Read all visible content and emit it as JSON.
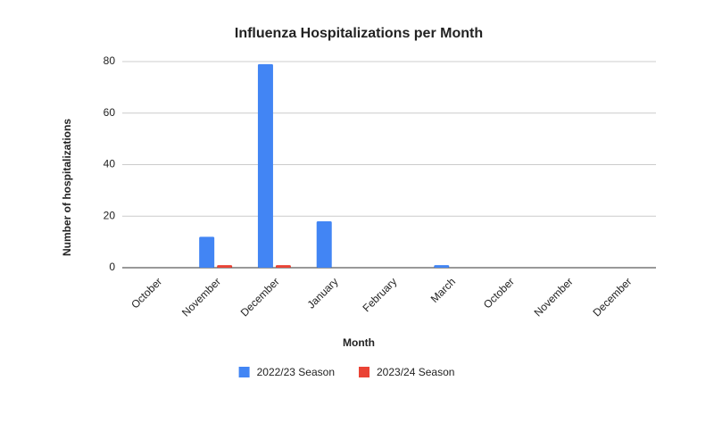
{
  "chart_data": {
    "type": "bar",
    "title": "Influenza Hospitalizations per Month",
    "x_label": "Month",
    "y_label": "Number of hospitalizations",
    "categories": [
      "October",
      "November",
      "December",
      "January",
      "February",
      "March",
      "October",
      "November",
      "December"
    ],
    "series": [
      {
        "name": "2022/23 Season",
        "color": "#4285f4",
        "values": [
          0,
          12,
          79,
          18,
          0,
          1,
          0,
          0,
          0
        ]
      },
      {
        "name": "2023/24 Season",
        "color": "#ea4335",
        "values": [
          0,
          1,
          1,
          0,
          0,
          0,
          0,
          0,
          0
        ]
      }
    ],
    "ylim": [
      0,
      80
    ],
    "yticks": [
      0,
      20,
      40,
      60,
      80
    ],
    "grid": true,
    "legend": "bottom"
  }
}
